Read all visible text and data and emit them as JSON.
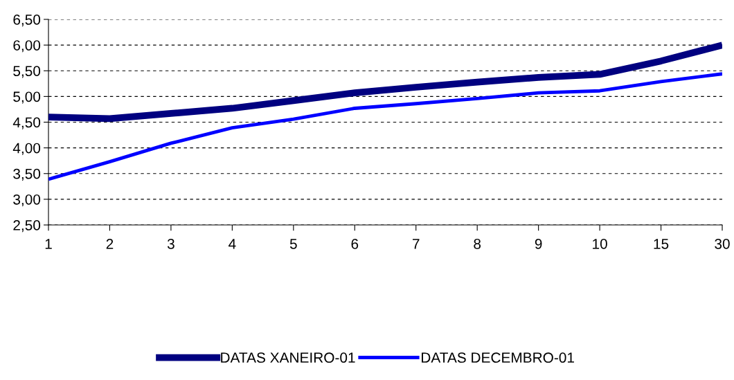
{
  "chart_data": {
    "type": "line",
    "categories": [
      "1",
      "2",
      "3",
      "4",
      "5",
      "6",
      "7",
      "8",
      "9",
      "10",
      "15",
      "30"
    ],
    "series": [
      {
        "name": "DATAS XANEIRO-01",
        "color": "#000080",
        "values": [
          4.6,
          4.57,
          4.67,
          4.77,
          4.92,
          5.07,
          5.18,
          5.28,
          5.37,
          5.43,
          5.69,
          6.0
        ]
      },
      {
        "name": "DATAS DECEMBRO-01",
        "color": "#0000ff",
        "values": [
          3.39,
          3.73,
          4.09,
          4.39,
          4.56,
          4.77,
          4.86,
          4.96,
          5.07,
          5.11,
          5.29,
          5.44
        ]
      }
    ],
    "ylim": [
      2.5,
      6.5
    ],
    "yticks": [
      {
        "value": 2.5,
        "label": "2,50"
      },
      {
        "value": 3.0,
        "label": "3,00"
      },
      {
        "value": 3.5,
        "label": "3,50"
      },
      {
        "value": 4.0,
        "label": "4,00"
      },
      {
        "value": 4.5,
        "label": "4,50"
      },
      {
        "value": 5.0,
        "label": "5,00"
      },
      {
        "value": 5.5,
        "label": "5,50"
      },
      {
        "value": 6.0,
        "label": "6,00"
      },
      {
        "value": 6.5,
        "label": "6,50"
      }
    ],
    "grid": "y",
    "legend": "bottom",
    "marker": "none",
    "line_style": "solid"
  }
}
